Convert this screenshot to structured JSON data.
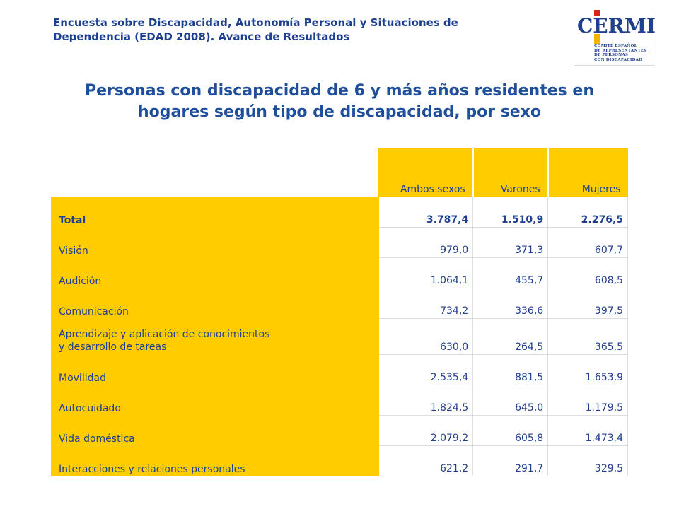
{
  "header": {
    "line1": "Encuesta sobre Discapacidad, Autonomía Personal y Situaciones de",
    "line2": "Dependencia (EDAD 2008). Avance de Resultados"
  },
  "logo": {
    "word": "CERMI",
    "subtitle": [
      "COMITÉ ESPAÑOL",
      "DE REPRESENTANTES",
      "DE PERSONAS",
      "CON DISCAPACIDAD"
    ]
  },
  "title": {
    "line1": "Personas con discapacidad de 6 y más años residentes en",
    "line2": "hogares según tipo de discapacidad, por sexo"
  },
  "table": {
    "headers": [
      "Ambos sexos",
      "Varones",
      "Mujeres"
    ],
    "rows": [
      {
        "label": "Total",
        "values": [
          "3.787,4",
          "1.510,9",
          "2.276,5"
        ]
      },
      {
        "label": "Visión",
        "values": [
          "979,0",
          "371,3",
          "607,7"
        ]
      },
      {
        "label": "Audición",
        "values": [
          "1.064,1",
          "455,7",
          "608,5"
        ]
      },
      {
        "label": "Comunicación",
        "values": [
          "734,2",
          "336,6",
          "397,5"
        ]
      },
      {
        "label_line1": "Aprendizaje y aplicación de conocimientos",
        "label_line2": "y desarrollo de tareas",
        "values": [
          "630,0",
          "264,5",
          "365,5"
        ]
      },
      {
        "label": "Movilidad",
        "values": [
          "2.535,4",
          "881,5",
          "1.653,9"
        ]
      },
      {
        "label": "Autocuidado",
        "values": [
          "1.824,5",
          "645,0",
          "1.179,5"
        ]
      },
      {
        "label": "Vida doméstica",
        "values": [
          "2.079,2",
          "605,8",
          "1.473,4"
        ]
      },
      {
        "label": "Interacciones y relaciones personales",
        "values": [
          "621,2",
          "291,7",
          "329,5"
        ]
      }
    ]
  },
  "colors": {
    "accent_yellow": "#ffcc00",
    "text_blue": "#1f3f8f",
    "logo_red": "#d62718"
  }
}
